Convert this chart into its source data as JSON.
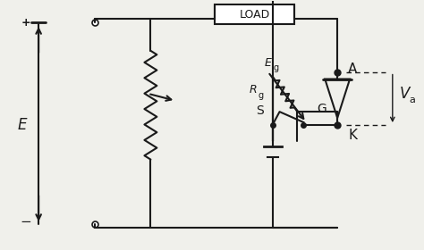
{
  "bg_color": "#f0f0eb",
  "line_color": "#1a1a1a",
  "lw": 1.5,
  "labels": {
    "E": "E",
    "plus": "+",
    "minus": "−",
    "LOAD": "LOAD",
    "A": "A",
    "K": "K",
    "G": "G",
    "S": "S",
    "Rg": "R",
    "Rg_sub": "g",
    "Eg": "E",
    "Eg_sub": "g",
    "Va": "V",
    "Va_sub": "a"
  }
}
